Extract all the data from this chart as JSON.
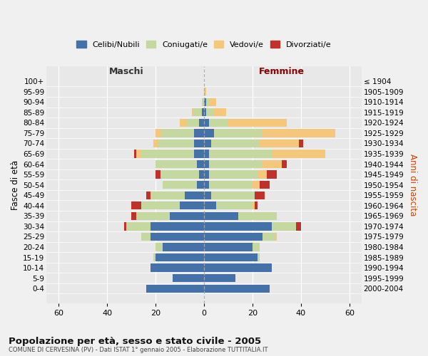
{
  "age_groups": [
    "0-4",
    "5-9",
    "10-14",
    "15-19",
    "20-24",
    "25-29",
    "30-34",
    "35-39",
    "40-44",
    "45-49",
    "50-54",
    "55-59",
    "60-64",
    "65-69",
    "70-74",
    "75-79",
    "80-84",
    "85-89",
    "90-94",
    "95-99",
    "100+"
  ],
  "birth_years": [
    "2000-2004",
    "1995-1999",
    "1990-1994",
    "1985-1989",
    "1980-1984",
    "1975-1979",
    "1970-1974",
    "1965-1969",
    "1960-1964",
    "1955-1959",
    "1950-1954",
    "1945-1949",
    "1940-1944",
    "1935-1939",
    "1930-1934",
    "1925-1929",
    "1920-1924",
    "1915-1919",
    "1910-1914",
    "1905-1909",
    "≤ 1904"
  ],
  "maschi": {
    "celibi": [
      24,
      13,
      22,
      20,
      17,
      22,
      22,
      14,
      10,
      8,
      3,
      2,
      3,
      4,
      4,
      4,
      2,
      1,
      0,
      0,
      0
    ],
    "coniugati": [
      0,
      0,
      0,
      1,
      3,
      4,
      10,
      14,
      16,
      14,
      14,
      16,
      17,
      22,
      15,
      14,
      5,
      3,
      1,
      0,
      0
    ],
    "vedovi": [
      0,
      0,
      0,
      0,
      0,
      0,
      0,
      0,
      0,
      0,
      0,
      0,
      0,
      2,
      2,
      2,
      3,
      1,
      0,
      0,
      0
    ],
    "divorziati": [
      0,
      0,
      0,
      0,
      0,
      0,
      1,
      2,
      4,
      2,
      0,
      2,
      0,
      1,
      0,
      0,
      0,
      0,
      0,
      0,
      0
    ]
  },
  "femmine": {
    "nubili": [
      27,
      13,
      28,
      22,
      20,
      24,
      28,
      14,
      5,
      3,
      2,
      2,
      2,
      2,
      3,
      4,
      2,
      1,
      1,
      0,
      0
    ],
    "coniugate": [
      0,
      0,
      0,
      1,
      3,
      5,
      10,
      16,
      15,
      18,
      18,
      20,
      22,
      26,
      20,
      20,
      8,
      3,
      1,
      0,
      0
    ],
    "vedove": [
      0,
      0,
      0,
      0,
      0,
      1,
      0,
      0,
      1,
      0,
      3,
      4,
      8,
      22,
      16,
      30,
      24,
      5,
      3,
      1,
      0
    ],
    "divorziate": [
      0,
      0,
      0,
      0,
      0,
      0,
      2,
      0,
      1,
      4,
      4,
      4,
      2,
      0,
      2,
      0,
      0,
      0,
      0,
      0,
      0
    ]
  },
  "colors": {
    "celibi_nubili": "#4472a8",
    "coniugati": "#c5d8a0",
    "vedovi": "#f5c77a",
    "divorziati": "#c0312b"
  },
  "title": "Popolazione per età, sesso e stato civile - 2005",
  "subtitle": "COMUNE DI CERVESINA (PV) - Dati ISTAT 1° gennaio 2005 - Elaborazione TUTTITALIA.IT",
  "xlabel_left": "Maschi",
  "xlabel_right": "Femmine",
  "ylabel_left": "Fasce di età",
  "ylabel_right": "Anni di nascita",
  "xlim": 65,
  "bg_color": "#f0f0f0",
  "plot_bg": "#e8e8e8",
  "legend_labels": [
    "Celibi/Nubili",
    "Coniugati/e",
    "Vedovi/e",
    "Divorziati/e"
  ],
  "grid_color": "#ffffff",
  "maschi_label_color": "#333333",
  "femmine_label_color": "#8b0000"
}
